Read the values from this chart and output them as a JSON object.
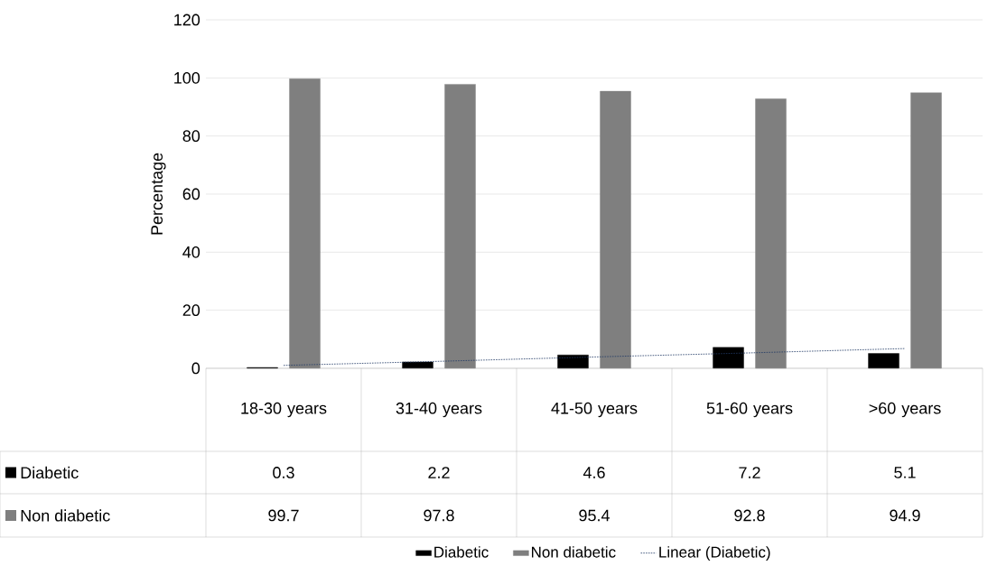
{
  "chart_data": {
    "type": "bar",
    "ylabel": "Percentage",
    "categories": [
      "18-30 years",
      "31-40 years",
      "41-50 years",
      "51-60 years",
      ">60 years"
    ],
    "series": [
      {
        "name": "Diabetic",
        "color": "#000000",
        "values": [
          0.3,
          2.2,
          4.6,
          7.2,
          5.1
        ],
        "value_labels": [
          "0.3",
          "2.2",
          "4.6",
          "7.2",
          "5.1"
        ]
      },
      {
        "name": "Non diabetic",
        "color": "#7f7f7f",
        "values": [
          99.7,
          97.8,
          95.4,
          92.8,
          94.9
        ],
        "value_labels": [
          "99.7",
          "97.8",
          "95.4",
          "92.8",
          "94.9"
        ]
      },
      {
        "name": "Linear (Diabetic)",
        "type": "line",
        "color": "#1f3864",
        "line_style": "dotted",
        "values": [
          1.0,
          2.4,
          3.9,
          5.3,
          6.8
        ]
      }
    ],
    "ylim": [
      0,
      120
    ],
    "yticks": [
      0,
      20,
      40,
      60,
      80,
      100,
      120
    ],
    "grid": "y",
    "legend": "bottom"
  }
}
